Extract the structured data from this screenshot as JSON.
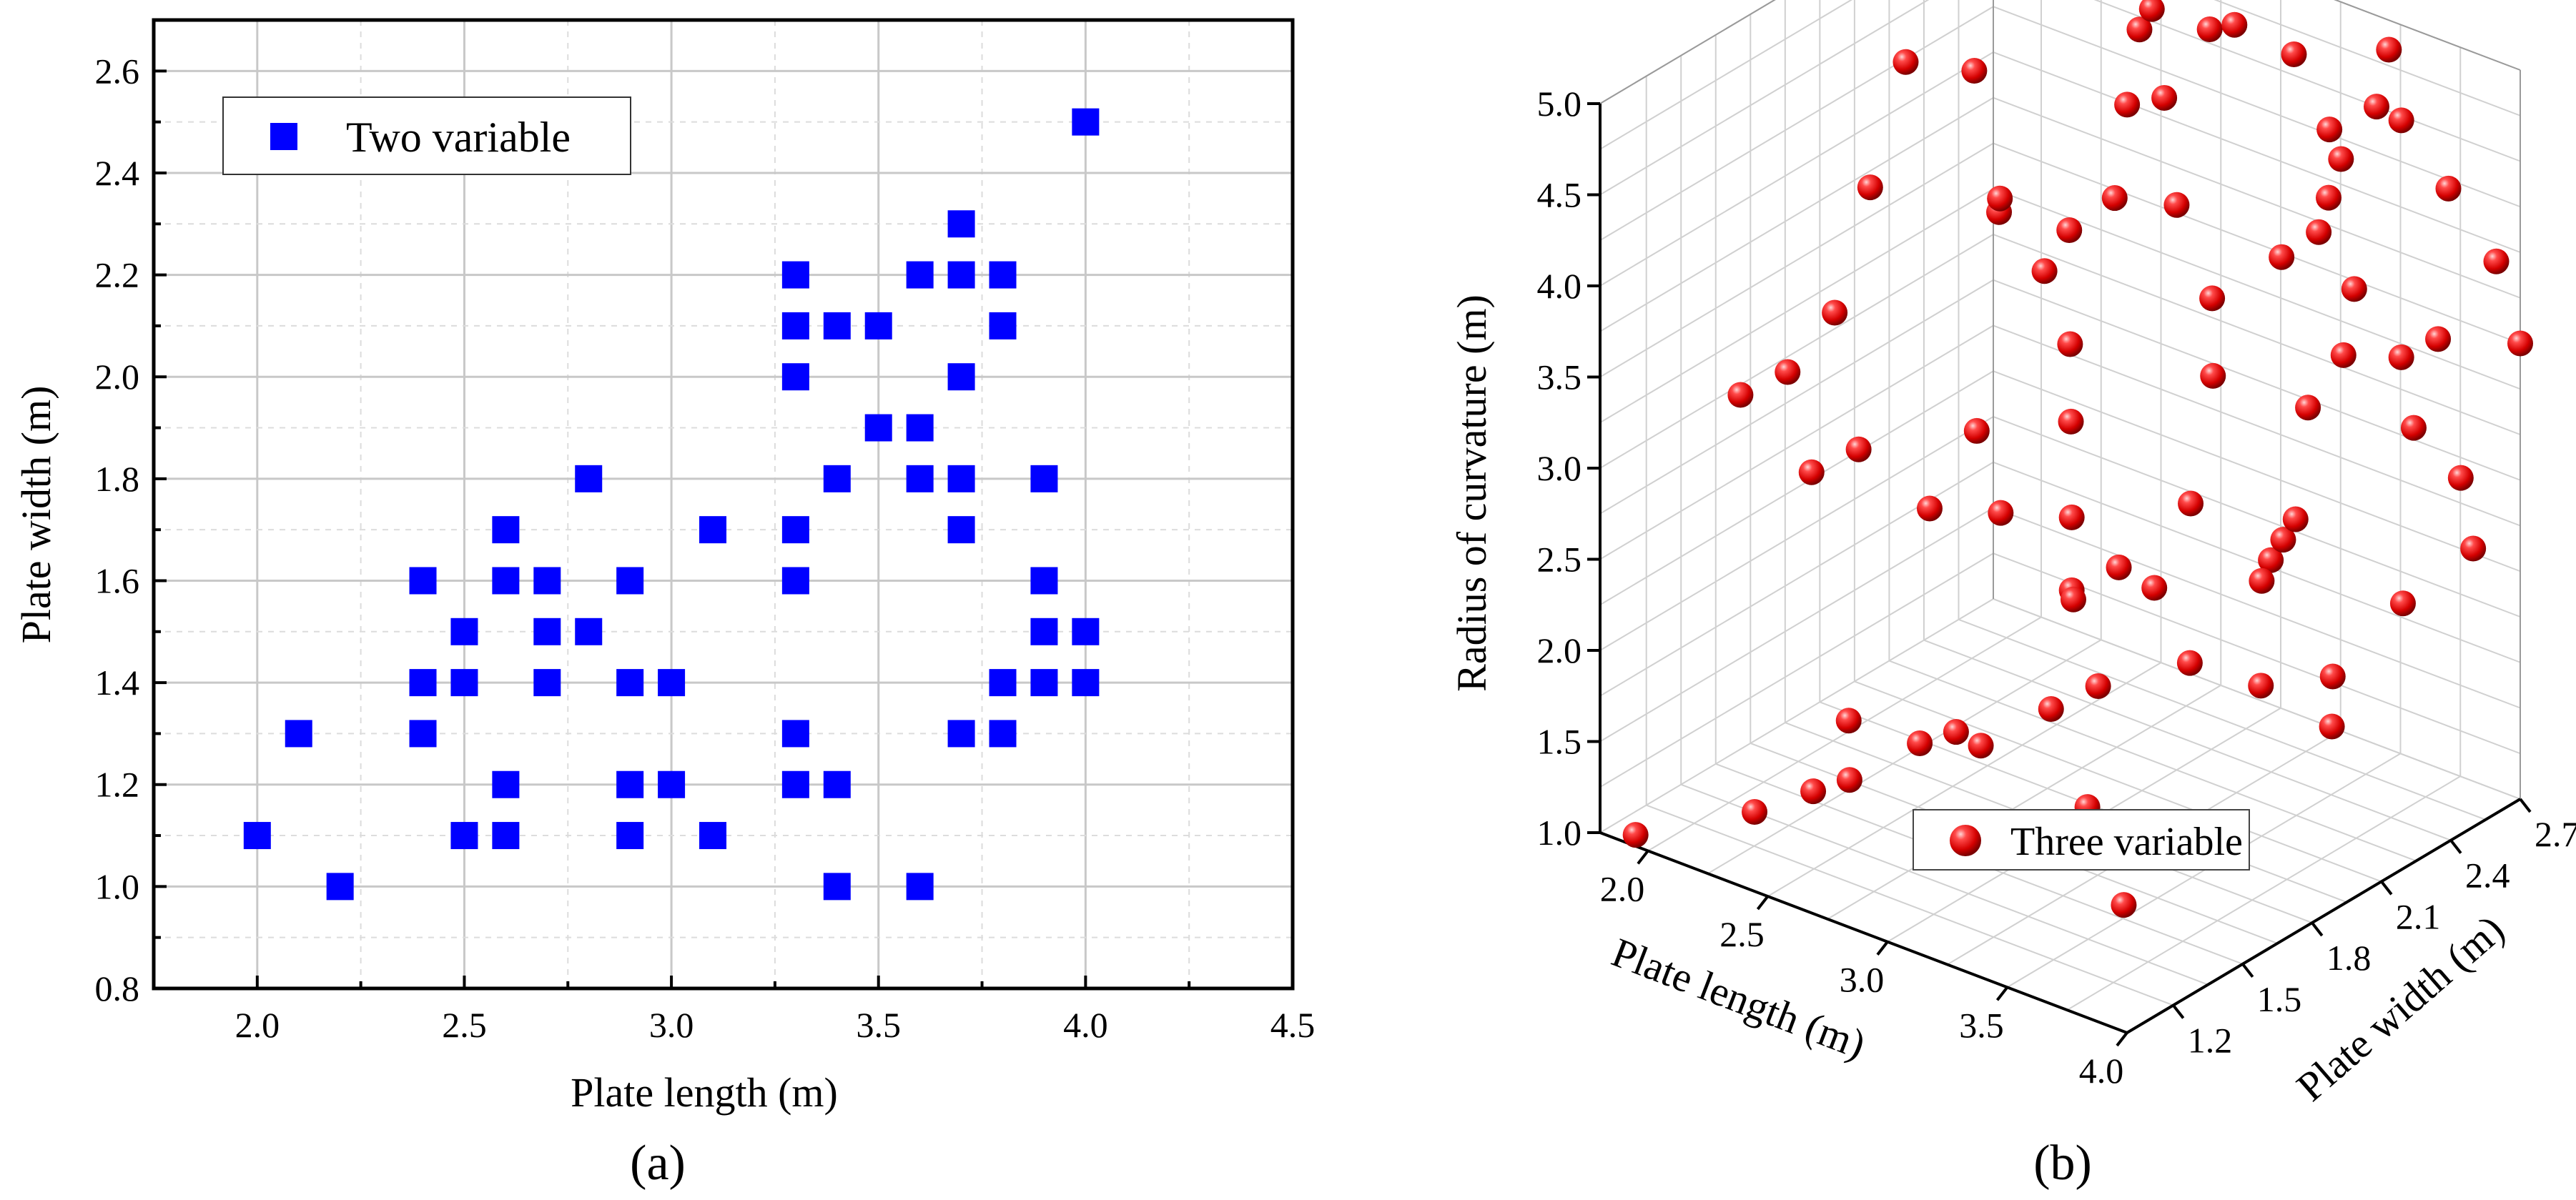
{
  "chart_data": [
    {
      "panel": "a",
      "panel_label": "(a)",
      "type": "scatter",
      "title": "",
      "xlabel": "Plate length (m)",
      "ylabel": "Plate width (m)",
      "xlim": [
        1.75,
        4.5
      ],
      "ylim": [
        0.8,
        2.7
      ],
      "xticks": [
        "2.0",
        "2.5",
        "3.0",
        "3.5",
        "4.0",
        "4.5"
      ],
      "yticks": [
        "0.8",
        "1.0",
        "1.2",
        "1.4",
        "1.6",
        "1.8",
        "2.0",
        "2.2",
        "2.4",
        "2.6"
      ],
      "grid": true,
      "legend_position": "top-left",
      "series": [
        {
          "name": "Two variable",
          "color": "#0000ff",
          "marker": "square",
          "points": [
            [
              2.0,
              1.1
            ],
            [
              2.1,
              1.3
            ],
            [
              2.2,
              1.0
            ],
            [
              2.4,
              1.6
            ],
            [
              2.4,
              1.4
            ],
            [
              2.4,
              1.3
            ],
            [
              2.5,
              1.5
            ],
            [
              2.5,
              1.4
            ],
            [
              2.5,
              1.1
            ],
            [
              2.6,
              1.7
            ],
            [
              2.6,
              1.6
            ],
            [
              2.6,
              1.2
            ],
            [
              2.6,
              1.1
            ],
            [
              2.7,
              1.6
            ],
            [
              2.7,
              1.5
            ],
            [
              2.7,
              1.4
            ],
            [
              2.8,
              1.8
            ],
            [
              2.8,
              1.5
            ],
            [
              2.9,
              1.6
            ],
            [
              2.9,
              1.4
            ],
            [
              2.9,
              1.2
            ],
            [
              2.9,
              1.1
            ],
            [
              3.0,
              1.4
            ],
            [
              3.0,
              1.2
            ],
            [
              3.1,
              1.7
            ],
            [
              3.1,
              1.1
            ],
            [
              3.3,
              2.2
            ],
            [
              3.3,
              2.1
            ],
            [
              3.3,
              2.0
            ],
            [
              3.3,
              1.7
            ],
            [
              3.3,
              1.6
            ],
            [
              3.3,
              1.3
            ],
            [
              3.3,
              1.2
            ],
            [
              3.4,
              2.1
            ],
            [
              3.4,
              1.8
            ],
            [
              3.4,
              1.2
            ],
            [
              3.4,
              1.0
            ],
            [
              3.5,
              2.1
            ],
            [
              3.5,
              1.9
            ],
            [
              3.6,
              2.2
            ],
            [
              3.6,
              1.9
            ],
            [
              3.6,
              1.8
            ],
            [
              3.6,
              1.0
            ],
            [
              3.7,
              2.3
            ],
            [
              3.7,
              2.2
            ],
            [
              3.7,
              2.0
            ],
            [
              3.7,
              1.8
            ],
            [
              3.7,
              1.7
            ],
            [
              3.7,
              1.3
            ],
            [
              3.8,
              2.2
            ],
            [
              3.8,
              2.1
            ],
            [
              3.8,
              1.4
            ],
            [
              3.8,
              1.3
            ],
            [
              3.9,
              1.8
            ],
            [
              3.9,
              1.6
            ],
            [
              3.9,
              1.5
            ],
            [
              3.9,
              1.4
            ],
            [
              4.0,
              2.5
            ],
            [
              4.0,
              1.5
            ],
            [
              4.0,
              1.4
            ]
          ]
        }
      ]
    },
    {
      "panel": "b",
      "panel_label": "(b)",
      "type": "scatter3d",
      "title": "",
      "xlabel": "Plate length (m)",
      "ylabel": "Plate width (m)",
      "zlabel": "Radius of curvature (m)",
      "xlim": [
        1.8,
        4.0
      ],
      "ylim": [
        1.0,
        2.7
      ],
      "zlim": [
        1.0,
        5.0
      ],
      "xticks": [
        "2.0",
        "2.5",
        "3.0",
        "3.5",
        "4.0"
      ],
      "yticks": [
        "1.2",
        "1.5",
        "1.8",
        "2.1",
        "2.4",
        "2.7"
      ],
      "zticks": [
        "1.0",
        "1.5",
        "2.0",
        "2.5",
        "3.0",
        "3.5",
        "4.0",
        "4.5",
        "5.0"
      ],
      "grid": true,
      "legend_position": "bottom-center",
      "series": [
        {
          "name": "Three variable",
          "color": "#ee1111",
          "marker": "sphere",
          "points": [
            [
              1.9,
              1.05,
              1.0
            ],
            [
              2.3,
              1.15,
              1.25
            ],
            [
              2.4,
              1.3,
              1.3
            ],
            [
              2.5,
              1.35,
              1.7
            ],
            [
              2.6,
              1.25,
              1.5
            ],
            [
              2.7,
              1.45,
              1.6
            ],
            [
              2.9,
              1.4,
              1.8
            ],
            [
              3.1,
              1.3,
              1.9
            ],
            [
              3.2,
              1.5,
              2.0
            ],
            [
              3.4,
              1.45,
              1.6
            ],
            [
              3.5,
              1.35,
              1.45
            ],
            [
              3.6,
              1.4,
              1.2
            ],
            [
              3.3,
              1.6,
              2.1
            ],
            [
              3.1,
              1.7,
              2.4
            ],
            [
              2.9,
              1.9,
              2.2
            ],
            [
              2.7,
              1.8,
              2.6
            ],
            [
              2.5,
              1.7,
              2.6
            ],
            [
              2.3,
              1.6,
              2.9
            ],
            [
              2.2,
              1.5,
              2.8
            ],
            [
              2.0,
              1.4,
              3.2
            ],
            [
              2.1,
              1.5,
              3.3
            ],
            [
              2.2,
              1.6,
              3.6
            ],
            [
              2.3,
              1.65,
              4.3
            ],
            [
              2.4,
              1.7,
              5.0
            ],
            [
              2.6,
              1.9,
              4.2
            ],
            [
              2.8,
              2.0,
              3.0
            ],
            [
              2.7,
              2.1,
              3.3
            ],
            [
              2.6,
              2.2,
              3.8
            ],
            [
              2.5,
              2.0,
              4.0
            ],
            [
              2.3,
              2.1,
              4.6
            ],
            [
              2.6,
              1.8,
              3.0
            ],
            [
              2.9,
              1.9,
              2.6
            ],
            [
              3.0,
              2.0,
              2.3
            ],
            [
              3.1,
              2.05,
              2.2
            ],
            [
              3.2,
              2.1,
              1.8
            ],
            [
              3.4,
              2.2,
              1.7
            ],
            [
              3.6,
              2.3,
              1.5
            ],
            [
              3.7,
              2.2,
              1.9
            ],
            [
              3.5,
              2.1,
              2.4
            ],
            [
              3.3,
              2.0,
              2.8
            ],
            [
              3.2,
              2.2,
              3.3
            ],
            [
              3.1,
              2.3,
              3.6
            ],
            [
              3.0,
              2.25,
              4.1
            ],
            [
              2.9,
              2.3,
              4.6
            ],
            [
              2.8,
              2.35,
              5.0
            ],
            [
              2.7,
              2.4,
              4.8
            ],
            [
              2.6,
              2.45,
              4.3
            ],
            [
              2.5,
              2.5,
              3.7
            ],
            [
              2.4,
              2.3,
              3.4
            ],
            [
              2.8,
              2.6,
              4.7
            ],
            [
              3.0,
              2.5,
              4.9
            ],
            [
              3.2,
              2.55,
              4.8
            ],
            [
              3.3,
              2.6,
              4.4
            ],
            [
              3.4,
              2.45,
              4.0
            ],
            [
              3.5,
              2.5,
              3.7
            ],
            [
              3.6,
              2.6,
              3.3
            ],
            [
              3.7,
              2.55,
              3.0
            ],
            [
              3.8,
              2.65,
              2.7
            ],
            [
              3.9,
              2.6,
              2.4
            ],
            [
              3.8,
              2.4,
              2.2
            ],
            [
              3.9,
              2.7,
              3.9
            ],
            [
              3.7,
              2.7,
              4.2
            ],
            [
              3.85,
              2.5,
              3.6
            ],
            [
              4.0,
              2.7,
              3.5
            ],
            [
              3.6,
              2.35,
              3.5
            ],
            [
              3.5,
              2.3,
              3.2
            ],
            [
              3.4,
              2.35,
              2.5
            ],
            [
              3.3,
              2.4,
              2.3
            ],
            [
              3.2,
              2.45,
              2.1
            ],
            [
              3.6,
              2.6,
              4.6
            ],
            [
              3.5,
              2.65,
              4.9
            ],
            [
              3.4,
              2.7,
              4.5
            ],
            [
              3.3,
              2.65,
              4.2
            ],
            [
              3.2,
              2.7,
              3.9
            ],
            [
              3.1,
              2.6,
              3.6
            ]
          ]
        }
      ]
    }
  ]
}
